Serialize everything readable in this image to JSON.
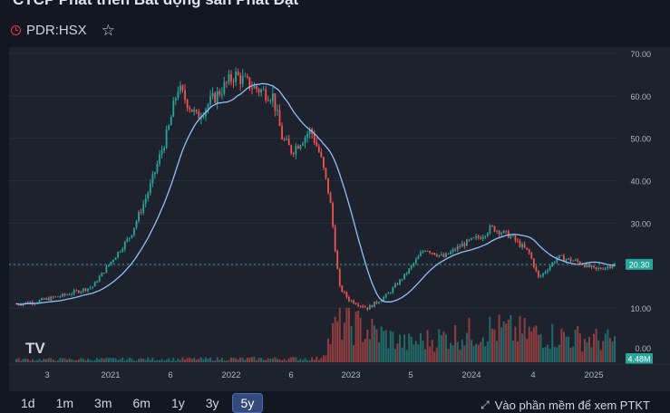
{
  "header": {
    "title": "CTCP Phát triển Bất động sản Phát Đạt",
    "ticker": "PDR:HSX"
  },
  "price_scale": {
    "ticks": [
      "70.00",
      "60.00",
      "50.00",
      "40.00",
      "30.00",
      "10.00",
      "0.00"
    ],
    "current_price": "20.30",
    "volume_label": "4.48M"
  },
  "time_scale": {
    "ticks": [
      "3",
      "2021",
      "6",
      "2022",
      "6",
      "2023",
      "5",
      "2024",
      "4",
      "2025"
    ]
  },
  "timeframes": [
    "1d",
    "1m",
    "3m",
    "6m",
    "1y",
    "3y",
    "5y"
  ],
  "active_timeframe": "5y",
  "footer_link": "Vào phần mềm để xem PTKT",
  "colors": {
    "up": "#26a69a",
    "down": "#ef5350",
    "ma": "#90bff9",
    "price_line": "#26a69a",
    "background": "#1e222d"
  },
  "chart_data": {
    "type": "candlestick",
    "title": "",
    "ylim": [
      0,
      70
    ],
    "x_ticks": [
      "3",
      "2021",
      "6",
      "2022",
      "6",
      "2023",
      "5",
      "2024",
      "4",
      "2025"
    ],
    "close_series_approx": [
      {
        "x": "2020-01",
        "y": 11.0
      },
      {
        "x": "2020-03",
        "y": 11.5
      },
      {
        "x": "2020-06",
        "y": 13.0
      },
      {
        "x": "2020-09",
        "y": 15.0
      },
      {
        "x": "2020-11",
        "y": 21.0
      },
      {
        "x": "2021-01",
        "y": 27.0
      },
      {
        "x": "2021-03",
        "y": 38.0
      },
      {
        "x": "2021-05",
        "y": 52.0
      },
      {
        "x": "2021-06",
        "y": 62.0
      },
      {
        "x": "2021-08",
        "y": 55.0
      },
      {
        "x": "2021-10",
        "y": 60.0
      },
      {
        "x": "2021-12",
        "y": 65.0
      },
      {
        "x": "2022-02",
        "y": 62.0
      },
      {
        "x": "2022-04",
        "y": 60.0
      },
      {
        "x": "2022-05",
        "y": 50.0
      },
      {
        "x": "2022-06",
        "y": 47.0
      },
      {
        "x": "2022-08",
        "y": 52.0
      },
      {
        "x": "2022-09",
        "y": 46.0
      },
      {
        "x": "2022-10",
        "y": 36.0
      },
      {
        "x": "2022-11",
        "y": 15.0
      },
      {
        "x": "2022-12",
        "y": 12.0
      },
      {
        "x": "2023-02",
        "y": 10.0
      },
      {
        "x": "2023-04",
        "y": 13.0
      },
      {
        "x": "2023-06",
        "y": 18.0
      },
      {
        "x": "2023-08",
        "y": 24.0
      },
      {
        "x": "2023-10",
        "y": 22.0
      },
      {
        "x": "2023-12",
        "y": 25.0
      },
      {
        "x": "2024-02",
        "y": 27.0
      },
      {
        "x": "2024-03",
        "y": 29.0
      },
      {
        "x": "2024-05",
        "y": 27.0
      },
      {
        "x": "2024-07",
        "y": 23.0
      },
      {
        "x": "2024-08",
        "y": 17.0
      },
      {
        "x": "2024-10",
        "y": 22.0
      },
      {
        "x": "2024-12",
        "y": 21.0
      },
      {
        "x": "2025-02",
        "y": 19.0
      },
      {
        "x": "2025-04",
        "y": 20.3
      }
    ],
    "volume_series": [
      {
        "x": "2020-01",
        "y": 0.6
      },
      {
        "x": "2021-06",
        "y": 0.7
      },
      {
        "x": "2022-09",
        "y": 0.8
      },
      {
        "x": "2022-11",
        "y": 9.0
      },
      {
        "x": "2023-06",
        "y": 4.0
      },
      {
        "x": "2024-03",
        "y": 7.0
      },
      {
        "x": "2025-04",
        "y": 4.48
      }
    ]
  }
}
